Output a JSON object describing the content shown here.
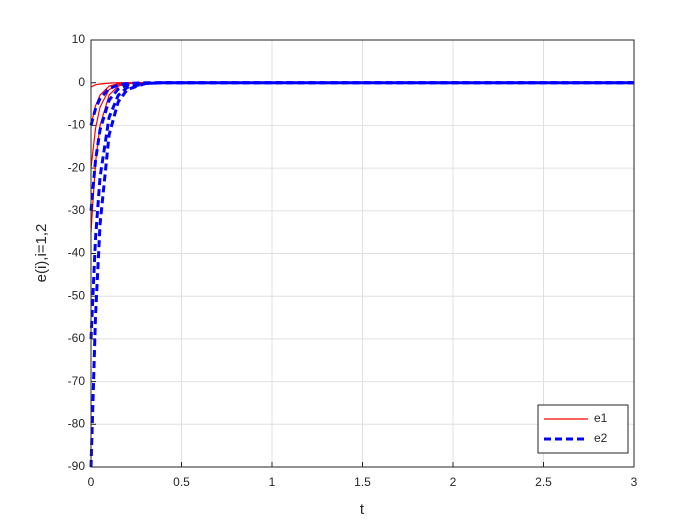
{
  "chart_data": {
    "type": "line",
    "xlabel": "t",
    "ylabel": "e(i),i=1,2",
    "x": [
      0,
      0.025,
      0.05,
      0.1,
      0.15,
      0.2,
      0.3,
      0.4,
      0.5,
      1,
      1.5,
      2,
      2.5,
      3
    ],
    "series": [
      {
        "name": "e1",
        "color": "#ff0000",
        "dashed": false,
        "width": 1.2,
        "curves": [
          [
            -1,
            -0.5,
            -0.3,
            -0.1,
            0,
            0,
            0,
            0,
            0,
            0,
            0,
            0,
            0,
            0
          ],
          [
            -10,
            -5.4,
            -2.9,
            -0.8,
            -0.2,
            -0.1,
            0,
            0,
            0,
            0,
            0,
            0,
            0,
            0
          ],
          [
            -20,
            -10.7,
            -5.7,
            -1.6,
            -0.5,
            -0.1,
            0,
            0,
            0,
            0,
            0,
            0,
            0,
            0
          ],
          [
            -35,
            -18.7,
            -10,
            -2.9,
            -0.8,
            -0.2,
            0,
            0,
            0,
            0,
            0,
            0,
            0,
            0
          ]
        ]
      },
      {
        "name": "e2",
        "color": "#0000ff",
        "dashed": true,
        "width": 3,
        "curves": [
          [
            -10,
            -6.1,
            -3.7,
            -1.4,
            -0.5,
            -0.2,
            0,
            0,
            0,
            0,
            0,
            0,
            0,
            0
          ],
          [
            -30,
            -18.2,
            -11,
            -4.1,
            -1.5,
            -0.5,
            -0.1,
            0,
            0,
            0,
            0,
            0,
            0,
            0
          ],
          [
            -60,
            -36.4,
            -22.1,
            -8.1,
            -3,
            -1.1,
            -0.2,
            0,
            0,
            0,
            0,
            0,
            0,
            0
          ],
          [
            -90,
            -54.6,
            -33.1,
            -12.2,
            -4.5,
            -1.6,
            -0.2,
            0,
            0,
            0,
            0,
            0,
            0,
            0
          ]
        ]
      }
    ],
    "xlim": [
      0,
      3
    ],
    "xticks": [
      0,
      0.5,
      1,
      1.5,
      2,
      2.5,
      3
    ],
    "ylim": [
      -90,
      10
    ],
    "yticks": [
      -90,
      -80,
      -70,
      -60,
      -50,
      -40,
      -30,
      -20,
      -10,
      0,
      10
    ],
    "grid": true,
    "legend": "lower right"
  }
}
